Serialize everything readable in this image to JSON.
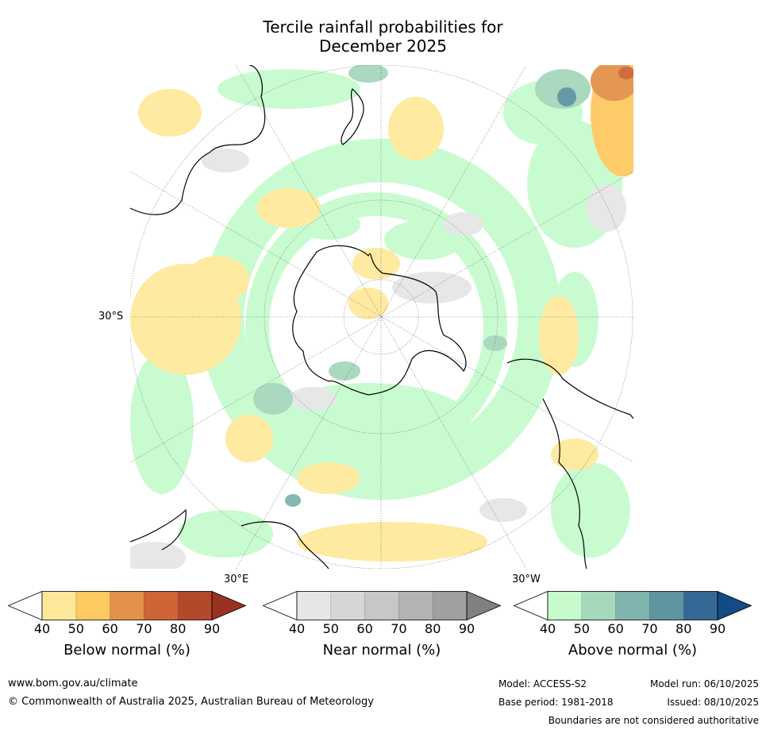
{
  "title_line1": "Tercile rainfall probabilities for",
  "title_line2": "December 2025",
  "graticule": {
    "lat_label": "30°S",
    "lon_label_east": "30°E",
    "lon_label_west": "30°W"
  },
  "colorbars": [
    {
      "label": "Below normal (%)",
      "ticks": [
        "40",
        "50",
        "60",
        "70",
        "80",
        "90"
      ],
      "colors": [
        "#ffffff",
        "#fee99b",
        "#fdc961",
        "#e2924a",
        "#cf6534",
        "#b4482a",
        "#993223"
      ]
    },
    {
      "label": "Near normal (%)",
      "ticks": [
        "40",
        "50",
        "60",
        "70",
        "80",
        "90"
      ],
      "colors": [
        "#ffffff",
        "#e6e6e6",
        "#d6d6d6",
        "#c7c7c7",
        "#b3b3b3",
        "#a0a0a0",
        "#808080"
      ]
    },
    {
      "label": "Above normal (%)",
      "ticks": [
        "40",
        "50",
        "60",
        "70",
        "80",
        "90"
      ],
      "colors": [
        "#ffffff",
        "#c7fbce",
        "#a6d8bc",
        "#7fb5ae",
        "#5e95a1",
        "#356895",
        "#124b86"
      ]
    }
  ],
  "footer": {
    "url": "www.bom.gov.au/climate",
    "copyright": "© Commonwealth of Australia 2025, Australian Bureau of Meteorology",
    "model": "Model: ACCESS-S2",
    "base_period": "Base period: 1981-2018",
    "model_run": "Model run: 06/10/2025",
    "issued": "Issued: 08/10/2025",
    "disclaimer": "Boundaries are not considered authoritative"
  }
}
